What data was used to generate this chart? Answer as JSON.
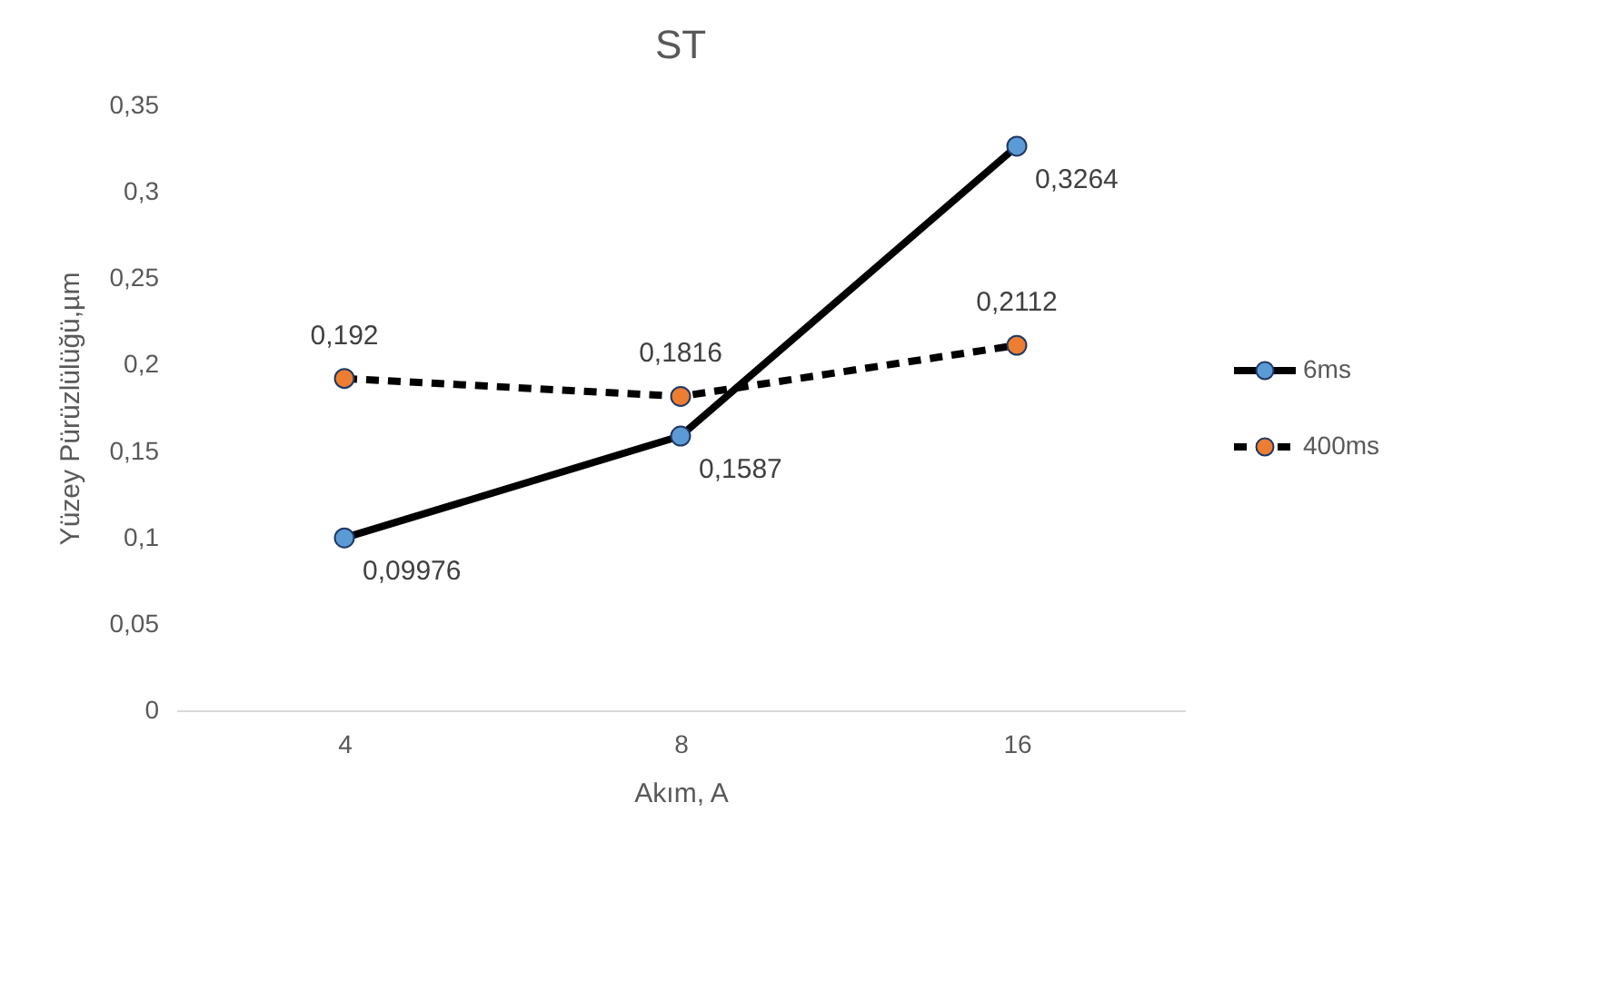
{
  "chart_data": {
    "type": "line",
    "title": "ST",
    "xlabel": "Akım, A",
    "ylabel": "Yüzey Pürüzlülüğü,µm",
    "categories": [
      "4",
      "8",
      "16"
    ],
    "series": [
      {
        "name": "6ms",
        "color": "#5b9bd5",
        "line_style": "solid",
        "values": [
          0.09976,
          0.1587,
          0.3264
        ],
        "value_labels": [
          "0,09976",
          "0,1587",
          "0,3264"
        ]
      },
      {
        "name": "400ms",
        "color": "#ed7d31",
        "line_style": "dashed",
        "values": [
          0.192,
          0.1816,
          0.2112
        ],
        "value_labels": [
          "0,192",
          "0,1816",
          "0,2112"
        ]
      }
    ],
    "ylim": [
      0,
      0.35
    ],
    "yticks": [
      0,
      {
        "value": 0.05,
        "label": "0,05"
      },
      {
        "value": 0.1,
        "label": "0,1"
      },
      {
        "value": 0.15,
        "label": "0,15"
      },
      {
        "value": 0.2,
        "label": "0,2"
      },
      {
        "value": 0.25,
        "label": "0,25"
      },
      {
        "value": 0.3,
        "label": "0,3"
      },
      {
        "value": 0.35,
        "label": "0,35"
      }
    ],
    "grid": false,
    "legend": "right",
    "marker": "circle"
  }
}
